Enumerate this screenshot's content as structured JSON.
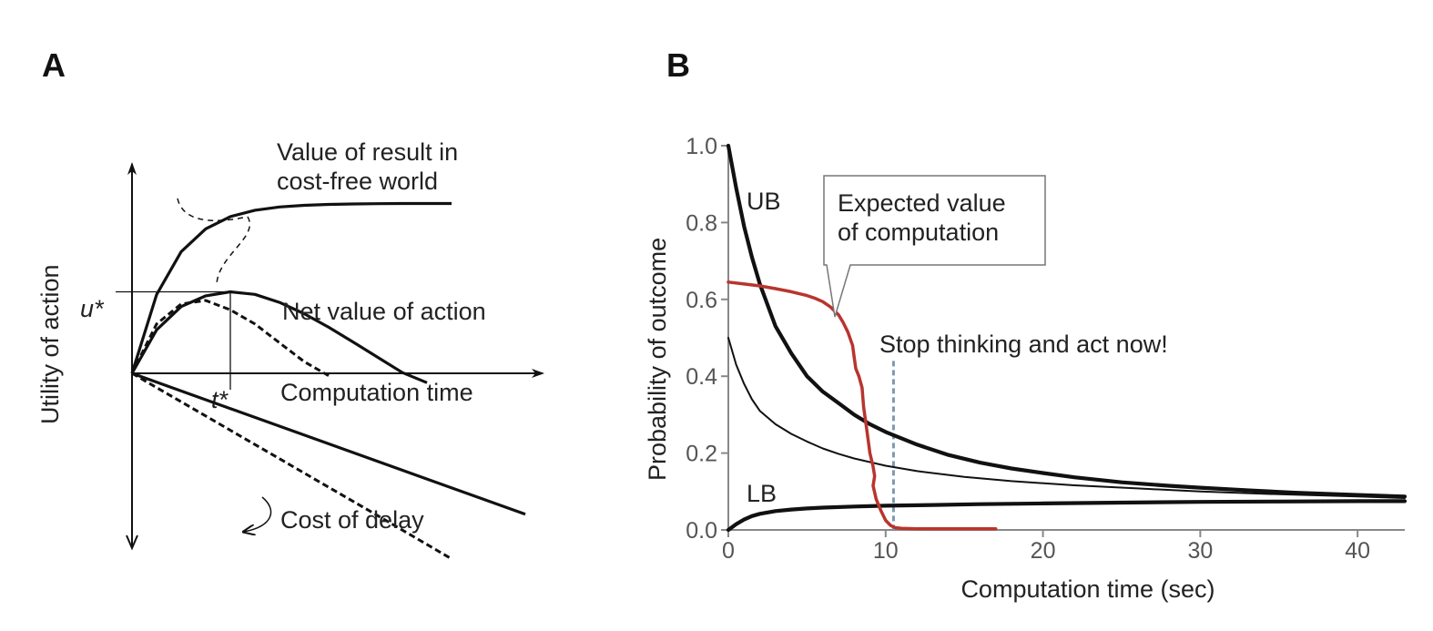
{
  "panel_a": {
    "letter": "A",
    "ylabel": "Utility of action",
    "xlabel": "Computation time",
    "u_star": "u*",
    "t_star": "t*",
    "label_value_line1": "Value of result in",
    "label_value_line2": "cost-free world",
    "label_net": "Net value of action",
    "label_cost": "Cost of delay"
  },
  "panel_b": {
    "letter": "B",
    "annotation_stop": "Stop thinking and act now!",
    "callout_line1": "Expected value",
    "callout_line2": "of computation",
    "label_ub": "UB",
    "label_lb": "LB"
  },
  "colors": {
    "ink": "#111111",
    "red": "#b8352e",
    "dashed_blue": "#7d99b2"
  },
  "chart_data": [
    {
      "type": "line",
      "title": "",
      "xlabel": "Computation time",
      "ylabel": "Utility of action",
      "ticks": "none",
      "grid": false,
      "annotations": [
        "Value of result in cost-free world",
        "Net value of action",
        "Cost of delay",
        "u*",
        "t*"
      ],
      "series": [
        {
          "role": "value-cost-free",
          "style": "solid",
          "x": [
            0,
            1,
            2,
            3,
            4,
            5,
            6,
            7,
            8,
            9,
            10,
            11,
            12,
            13
          ],
          "y": [
            0,
            3.35,
            5.18,
            6.15,
            6.67,
            6.94,
            7.08,
            7.15,
            7.19,
            7.21,
            7.22,
            7.23,
            7.23,
            7.23
          ]
        },
        {
          "role": "net-value",
          "style": "solid",
          "x": [
            0,
            1,
            2,
            3,
            4,
            5,
            6,
            7,
            8,
            9,
            10,
            11,
            12
          ],
          "y": [
            0,
            1.85,
            2.84,
            3.3,
            3.47,
            3.36,
            3.02,
            2.54,
            1.96,
            1.33,
            0.68,
            0.03,
            -0.4
          ]
        },
        {
          "role": "net-value-alt",
          "style": "dashed",
          "x": [
            0,
            1,
            2,
            3,
            4,
            5,
            6,
            7,
            8
          ],
          "y": [
            0,
            2.1,
            2.95,
            3.1,
            2.7,
            2.1,
            1.3,
            0.5,
            -0.1
          ]
        },
        {
          "role": "cost-of-delay",
          "style": "solid",
          "x": [
            0,
            4,
            8,
            12,
            16
          ],
          "y": [
            0,
            -1.5,
            -3.0,
            -4.5,
            -6.0
          ]
        },
        {
          "role": "cost-of-delay-alt",
          "style": "dashed",
          "x": [
            0,
            3.3,
            6.6,
            9.9,
            13.0
          ],
          "y": [
            0,
            -2.0,
            -4.0,
            -6.0,
            -7.9
          ]
        }
      ],
      "markers": {
        "t_star": 4.0,
        "u_star": 3.47
      }
    },
    {
      "type": "line",
      "title": "",
      "xlabel": "Computation time (sec)",
      "ylabel": "Probability of outcome",
      "xlim": [
        0,
        43
      ],
      "ylim": [
        0,
        1.0
      ],
      "x_ticks": [
        0,
        10,
        20,
        30,
        40
      ],
      "x_tick_labels": [
        "0",
        "10",
        "20",
        "30",
        "40"
      ],
      "y_ticks": [
        0,
        0.2,
        0.4,
        0.6,
        0.8,
        1.0
      ],
      "y_tick_labels": [
        "0.0",
        "0.2",
        "0.4",
        "0.6",
        "0.8",
        "1.0"
      ],
      "grid": false,
      "legend": "none",
      "vline": {
        "x": 10.5,
        "label": "Stop thinking and act now!"
      },
      "series": [
        {
          "role": "UB",
          "color": "#111111",
          "width": 4.2,
          "x": [
            0,
            0.5,
            1,
            1.5,
            2,
            3,
            4,
            5,
            6,
            7,
            8,
            9,
            10,
            12,
            14,
            16,
            18,
            20,
            22,
            25,
            28,
            30,
            33,
            36,
            40,
            43
          ],
          "y": [
            1.0,
            0.89,
            0.79,
            0.71,
            0.64,
            0.53,
            0.46,
            0.4,
            0.36,
            0.33,
            0.3,
            0.275,
            0.255,
            0.222,
            0.195,
            0.175,
            0.16,
            0.148,
            0.137,
            0.124,
            0.115,
            0.11,
            0.103,
            0.097,
            0.091,
            0.087
          ]
        },
        {
          "role": "middle",
          "color": "#111111",
          "width": 2,
          "x": [
            0,
            0.5,
            1,
            1.5,
            2,
            3,
            4,
            5,
            6,
            7,
            8,
            10,
            12,
            15,
            18,
            22,
            26,
            30,
            35,
            40,
            43
          ],
          "y": [
            0.5,
            0.43,
            0.38,
            0.34,
            0.31,
            0.275,
            0.25,
            0.23,
            0.212,
            0.198,
            0.186,
            0.167,
            0.153,
            0.138,
            0.127,
            0.116,
            0.108,
            0.1,
            0.093,
            0.087,
            0.083
          ]
        },
        {
          "role": "LB",
          "color": "#111111",
          "width": 4.2,
          "x": [
            0,
            0.5,
            1,
            1.5,
            2,
            3,
            4,
            5,
            6,
            8,
            10,
            13,
            16,
            20,
            25,
            30,
            35,
            40,
            43
          ],
          "y": [
            0.0,
            0.015,
            0.027,
            0.036,
            0.042,
            0.049,
            0.053,
            0.056,
            0.058,
            0.061,
            0.063,
            0.065,
            0.067,
            0.069,
            0.071,
            0.073,
            0.074,
            0.075,
            0.075
          ]
        },
        {
          "role": "expected-value-of-computation",
          "color": "#b8352e",
          "width": 3.5,
          "x": [
            0,
            1,
            2,
            3,
            4,
            5,
            5.5,
            6,
            6.5,
            7,
            7.3,
            7.6,
            7.9,
            8.0,
            8.1,
            8.3,
            8.5,
            8.6,
            8.8,
            9.0,
            9.2,
            9.3,
            9.2,
            9.4,
            9.7,
            10.0,
            10.3,
            10.6,
            11,
            12,
            13,
            14,
            15,
            16,
            17
          ],
          "y": [
            0.645,
            0.64,
            0.635,
            0.628,
            0.62,
            0.61,
            0.603,
            0.594,
            0.58,
            0.56,
            0.54,
            0.515,
            0.48,
            0.45,
            0.42,
            0.4,
            0.37,
            0.32,
            0.26,
            0.2,
            0.165,
            0.14,
            0.115,
            0.08,
            0.05,
            0.025,
            0.012,
            0.006,
            0.004,
            0.003,
            0.003,
            0.003,
            0.003,
            0.003,
            0.003
          ]
        }
      ]
    }
  ]
}
